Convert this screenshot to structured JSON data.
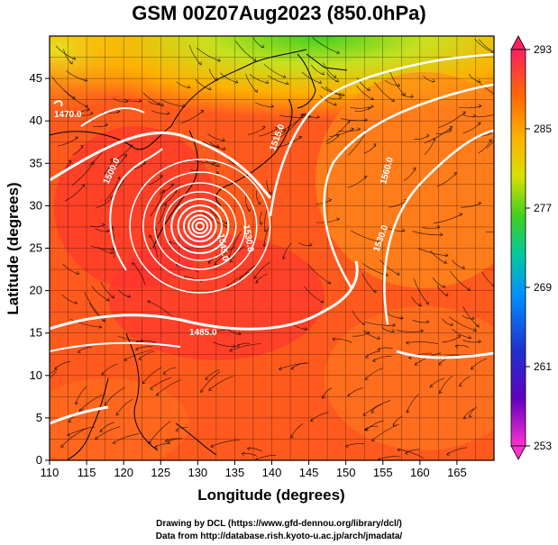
{
  "title": "GSM 00Z07Aug2023 (850.0hPa)",
  "xlabel": "Longitude (degrees)",
  "ylabel": "Latitude  (degrees)",
  "x_ticks": [
    "110",
    "115",
    "120",
    "125",
    "130",
    "135",
    "140",
    "145",
    "150",
    "155",
    "160",
    "165"
  ],
  "y_ticks": [
    "0",
    "5",
    "10",
    "15",
    "20",
    "25",
    "30",
    "35",
    "40",
    "45"
  ],
  "colorbar": {
    "ticks": [
      "293",
      "285",
      "277",
      "269",
      "261",
      "253"
    ],
    "stops": [
      "#ff2060",
      "#ff6a00",
      "#ffb000",
      "#d8e000",
      "#40d020",
      "#00c8a0",
      "#0090ff",
      "#2030d0",
      "#6000c0",
      "#c000c0",
      "#ff30d0"
    ]
  },
  "contour_labels": [
    "1485.0",
    "1515.0",
    "1530.0",
    "1545.0",
    "1560.0",
    "1530.0",
    "1500.0",
    "1470.0"
  ],
  "credits": {
    "line1": "Drawing by DCL (https://www.gfd-dennou.org/library/dcl/)",
    "line2": "Data from http://database.rish.kyoto-u.ac.jp/arch/jmadata/"
  },
  "chart_data": {
    "type": "heatmap",
    "title": "GSM 00Z07Aug2023 (850.0hPa)",
    "xlabel": "Longitude (degrees)",
    "ylabel": "Latitude  (degrees)",
    "xlim": [
      110,
      170
    ],
    "ylim": [
      0,
      50
    ],
    "colorbar_range": [
      253,
      293
    ],
    "typhoon_center": {
      "lon": 130.3,
      "lat": 27.6
    },
    "grid": true
  },
  "colors": {
    "field_main": "#ff5a1e",
    "field_hot": "#ff2f2f",
    "field_warm": "#ff8a1a",
    "field_cool": "#c8d820",
    "contour": "#ffffff",
    "streamline": "#000000"
  }
}
